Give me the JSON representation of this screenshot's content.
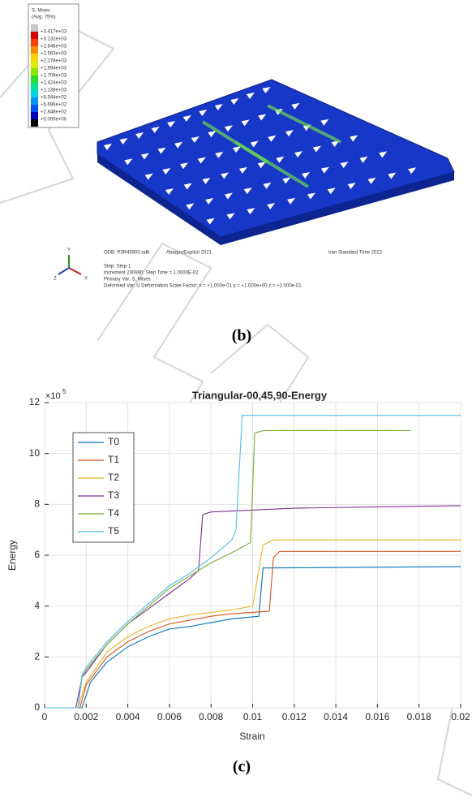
{
  "figure_b": {
    "legend": {
      "title": "S, Mises",
      "subtitle": "(Avg: 75%)",
      "values": [
        "+3.417e+03",
        "+3.132e+03",
        "+2.848e+03",
        "+2.563e+03",
        "+2.278e+03",
        "+1.994e+03",
        "+1.709e+03",
        "+1.424e+03",
        "+1.139e+03",
        "+8.544e+02",
        "+5.696e+02",
        "+2.848e+02",
        "+0.000e+00"
      ]
    },
    "info": {
      "odb": "ODB: P3R45900.odb",
      "solver": "Abaqus/Explicit 2021",
      "date": "Iran Standard Time 2022",
      "step": "Step: Step-1",
      "increment": "Increment    230990: Step Time =    1.0000E-02",
      "primary": "Primary Var: S, Mises",
      "deformed": "Deformed Var: U   Deformation Scale Factor: x = +1.000e-01  y = +1.000e+00  z = +1.000e-01"
    },
    "triad": {
      "y": "Y",
      "z": "Z",
      "x": "X"
    },
    "caption": "(b)"
  },
  "chart_data": {
    "type": "line",
    "title": "Triangular-00,45,90-Energy",
    "xlabel": "Strain",
    "ylabel": "Energy",
    "y_offset_base": "×10",
    "y_offset_exponent": "5",
    "xlim": [
      0,
      0.02
    ],
    "ylim": [
      0,
      12
    ],
    "xticks": [
      0,
      0.002,
      0.004,
      0.006,
      0.008,
      0.01,
      0.012,
      0.014,
      0.016,
      0.018,
      0.02
    ],
    "yticks": [
      0,
      2,
      4,
      6,
      8,
      10,
      12
    ],
    "grid": true,
    "legend_position": "upper left",
    "series": [
      {
        "name": "T0",
        "color": "#0072bd",
        "x": [
          0,
          0.0018,
          0.002,
          0.0022,
          0.003,
          0.004,
          0.005,
          0.006,
          0.007,
          0.008,
          0.009,
          0.0103,
          0.0105,
          0.02
        ],
        "values": [
          0,
          0,
          0.5,
          1.0,
          1.8,
          2.4,
          2.8,
          3.1,
          3.2,
          3.35,
          3.5,
          3.6,
          5.5,
          5.55
        ]
      },
      {
        "name": "T1",
        "color": "#d95319",
        "x": [
          0,
          0.0017,
          0.002,
          0.003,
          0.004,
          0.005,
          0.006,
          0.007,
          0.008,
          0.009,
          0.0108,
          0.011,
          0.0113,
          0.02
        ],
        "values": [
          0,
          0,
          0.9,
          2.0,
          2.6,
          3.0,
          3.3,
          3.45,
          3.6,
          3.7,
          3.8,
          5.9,
          6.15,
          6.15
        ]
      },
      {
        "name": "T2",
        "color": "#edb120",
        "x": [
          0,
          0.0016,
          0.002,
          0.003,
          0.004,
          0.005,
          0.006,
          0.007,
          0.008,
          0.009,
          0.01,
          0.0105,
          0.011,
          0.02
        ],
        "values": [
          0,
          0,
          1.0,
          2.2,
          2.8,
          3.2,
          3.5,
          3.65,
          3.75,
          3.85,
          4.0,
          6.4,
          6.6,
          6.6
        ]
      },
      {
        "name": "T3",
        "color": "#7e2f8e",
        "x": [
          0,
          0.0015,
          0.0018,
          0.002,
          0.003,
          0.004,
          0.005,
          0.006,
          0.007,
          0.0074,
          0.0076,
          0.008,
          0.012,
          0.02
        ],
        "values": [
          0,
          0,
          1.2,
          1.4,
          2.5,
          3.3,
          3.9,
          4.5,
          5.1,
          5.4,
          7.6,
          7.7,
          7.85,
          7.95
        ]
      },
      {
        "name": "T4",
        "color": "#77ac30",
        "x": [
          0,
          0.0016,
          0.0018,
          0.002,
          0.003,
          0.004,
          0.005,
          0.006,
          0.007,
          0.008,
          0.009,
          0.0099,
          0.0101,
          0.0105,
          0.0176
        ],
        "values": [
          0,
          0,
          1.2,
          1.5,
          2.5,
          3.3,
          4.0,
          4.7,
          5.2,
          5.7,
          6.1,
          6.5,
          10.8,
          10.9,
          10.9
        ]
      },
      {
        "name": "T5",
        "color": "#4dbeee",
        "x": [
          0,
          0.0016,
          0.0018,
          0.002,
          0.003,
          0.004,
          0.005,
          0.006,
          0.007,
          0.008,
          0.009,
          0.0092,
          0.0095,
          0.02
        ],
        "values": [
          0,
          0,
          1.3,
          1.6,
          2.6,
          3.4,
          4.1,
          4.8,
          5.3,
          5.9,
          6.6,
          7.0,
          11.5,
          11.5
        ]
      }
    ]
  },
  "caption_c": "(c)"
}
